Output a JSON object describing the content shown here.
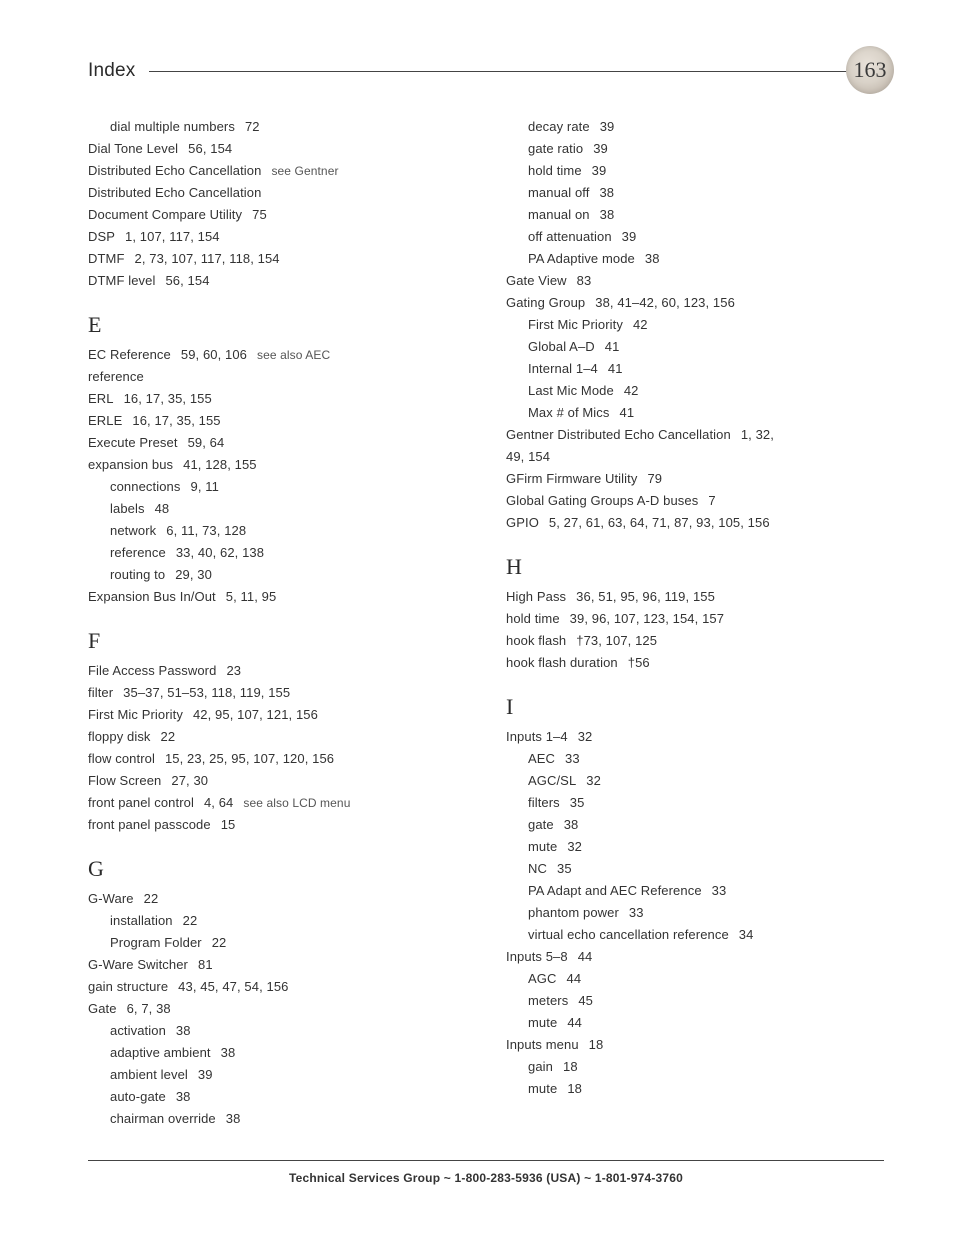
{
  "header": {
    "title": "Index",
    "page_number": "163"
  },
  "footer": {
    "text": "Technical Services Group ~ 1-800-283-5936 (USA) ~ 1-801-974-3760"
  },
  "left": [
    {
      "type": "sub",
      "text": "dial multiple numbers",
      "pages": "72"
    },
    {
      "type": "entry",
      "text": "Dial Tone Level",
      "pages": "56, 154"
    },
    {
      "type": "entry",
      "text": "Distributed Echo Cancellation",
      "note": "see Gentner"
    },
    {
      "type": "entry",
      "text": "Distributed Echo Cancellation"
    },
    {
      "type": "entry",
      "text": "Document Compare Utility",
      "pages": "75"
    },
    {
      "type": "entry",
      "text": "DSP",
      "pages": "1, 107, 117, 154"
    },
    {
      "type": "entry",
      "text": "DTMF",
      "pages": "2, 73, 107, 117, 118, 154"
    },
    {
      "type": "entry",
      "text": "DTMF level",
      "pages": "56, 154"
    },
    {
      "type": "heading",
      "text": "E"
    },
    {
      "type": "entry",
      "text": "EC Reference",
      "pages": "59, 60, 106",
      "note": "see also AEC"
    },
    {
      "type": "entry",
      "text": "reference"
    },
    {
      "type": "entry",
      "text": "ERL",
      "pages": "16, 17, 35, 155"
    },
    {
      "type": "entry",
      "text": "ERLE",
      "pages": "16, 17, 35, 155"
    },
    {
      "type": "entry",
      "text": "Execute Preset",
      "pages": "59, 64"
    },
    {
      "type": "entry",
      "text": "expansion bus",
      "pages": "41, 128, 155"
    },
    {
      "type": "sub",
      "text": "connections",
      "pages": "9, 11"
    },
    {
      "type": "sub",
      "text": "labels",
      "pages": "48"
    },
    {
      "type": "sub",
      "text": "network",
      "pages": "6, 11, 73, 128"
    },
    {
      "type": "sub",
      "text": "reference",
      "pages": "33, 40, 62, 138"
    },
    {
      "type": "sub",
      "text": "routing to",
      "pages": "29, 30"
    },
    {
      "type": "entry",
      "text": "Expansion Bus In/Out",
      "pages": "5, 11, 95"
    },
    {
      "type": "heading",
      "text": "F"
    },
    {
      "type": "entry",
      "text": "File Access Password",
      "pages": "23"
    },
    {
      "type": "entry",
      "text": "filter",
      "pages": "35–37, 51–53, 118, 119, 155"
    },
    {
      "type": "entry",
      "text": "First Mic Priority",
      "pages": "42, 95, 107, 121, 156"
    },
    {
      "type": "entry",
      "text": "floppy disk",
      "pages": "22"
    },
    {
      "type": "entry",
      "text": "flow control",
      "pages": "15, 23, 25, 95, 107, 120, 156"
    },
    {
      "type": "entry",
      "text": "Flow Screen",
      "pages": "27, 30"
    },
    {
      "type": "entry",
      "text": "front panel control",
      "pages": "4, 64",
      "note": "see also LCD menu"
    },
    {
      "type": "entry",
      "text": "front panel passcode",
      "pages": "15"
    },
    {
      "type": "heading",
      "text": "G"
    },
    {
      "type": "entry",
      "text": "G-Ware",
      "pages": "22"
    },
    {
      "type": "sub",
      "text": "installation",
      "pages": "22"
    },
    {
      "type": "sub",
      "text": "Program Folder",
      "pages": "22"
    },
    {
      "type": "entry",
      "text": "G-Ware Switcher",
      "pages": "81"
    },
    {
      "type": "entry",
      "text": "gain structure",
      "pages": "43, 45, 47, 54, 156"
    },
    {
      "type": "entry",
      "text": "Gate",
      "pages": "6, 7, 38"
    },
    {
      "type": "sub",
      "text": "activation",
      "pages": "38"
    },
    {
      "type": "sub",
      "text": "adaptive ambient",
      "pages": "38"
    },
    {
      "type": "sub",
      "text": "ambient level",
      "pages": "39"
    },
    {
      "type": "sub",
      "text": "auto-gate",
      "pages": "38"
    },
    {
      "type": "sub",
      "text": "chairman override",
      "pages": "38"
    }
  ],
  "right": [
    {
      "type": "sub",
      "text": "decay rate",
      "pages": "39"
    },
    {
      "type": "sub",
      "text": "gate ratio",
      "pages": "39"
    },
    {
      "type": "sub",
      "text": "hold time",
      "pages": "39"
    },
    {
      "type": "sub",
      "text": "manual off",
      "pages": "38"
    },
    {
      "type": "sub",
      "text": "manual on",
      "pages": "38"
    },
    {
      "type": "sub",
      "text": "off attenuation",
      "pages": "39"
    },
    {
      "type": "sub",
      "text": "PA Adaptive mode",
      "pages": "38"
    },
    {
      "type": "entry",
      "text": "Gate View",
      "pages": "83"
    },
    {
      "type": "entry",
      "text": "Gating Group",
      "pages": "38, 41–42, 60, 123, 156"
    },
    {
      "type": "sub",
      "text": "First Mic Priority",
      "pages": "42"
    },
    {
      "type": "sub",
      "text": "Global A–D",
      "pages": "41"
    },
    {
      "type": "sub",
      "text": "Internal 1–4",
      "pages": "41"
    },
    {
      "type": "sub",
      "text": "Last Mic Mode",
      "pages": "42"
    },
    {
      "type": "sub",
      "text": "Max # of Mics",
      "pages": "41"
    },
    {
      "type": "entry",
      "text": "Gentner Distributed Echo Cancellation",
      "pages": "1, 32,"
    },
    {
      "type": "entry",
      "text": "49, 154"
    },
    {
      "type": "entry",
      "text": "GFirm Firmware Utility",
      "pages": "79"
    },
    {
      "type": "entry",
      "text": "Global Gating Groups A-D buses",
      "pages": "7"
    },
    {
      "type": "entry",
      "text": "GPIO",
      "pages": "5, 27, 61, 63, 64, 71, 87, 93, 105, 156"
    },
    {
      "type": "heading",
      "text": "H"
    },
    {
      "type": "entry",
      "text": "High Pass",
      "pages": "36, 51, 95, 96, 119, 155"
    },
    {
      "type": "entry",
      "text": "hold time",
      "pages": "39, 96, 107, 123, 154, 157"
    },
    {
      "type": "entry",
      "text": "hook flash",
      "pages": "†73, 107, 125"
    },
    {
      "type": "entry",
      "text": "hook flash duration",
      "pages": "†56"
    },
    {
      "type": "heading",
      "text": "I"
    },
    {
      "type": "entry",
      "text": "Inputs 1–4",
      "pages": "32"
    },
    {
      "type": "sub",
      "text": "AEC",
      "pages": "33"
    },
    {
      "type": "sub",
      "text": "AGC/SL",
      "pages": "32"
    },
    {
      "type": "sub",
      "text": "filters",
      "pages": "35"
    },
    {
      "type": "sub",
      "text": "gate",
      "pages": "38"
    },
    {
      "type": "sub",
      "text": "mute",
      "pages": "32"
    },
    {
      "type": "sub",
      "text": "NC",
      "pages": "35"
    },
    {
      "type": "sub",
      "text": "PA Adapt and AEC Reference",
      "pages": "33"
    },
    {
      "type": "sub",
      "text": "phantom power",
      "pages": "33"
    },
    {
      "type": "sub",
      "text": "virtual echo cancellation reference",
      "pages": "34"
    },
    {
      "type": "entry",
      "text": "Inputs 5–8",
      "pages": "44"
    },
    {
      "type": "sub",
      "text": "AGC",
      "pages": "44"
    },
    {
      "type": "sub",
      "text": "meters",
      "pages": "45"
    },
    {
      "type": "sub",
      "text": "mute",
      "pages": "44"
    },
    {
      "type": "entry",
      "text": "Inputs menu",
      "pages": "18"
    },
    {
      "type": "sub",
      "text": "gain",
      "pages": "18"
    },
    {
      "type": "sub",
      "text": "mute",
      "pages": "18"
    }
  ]
}
